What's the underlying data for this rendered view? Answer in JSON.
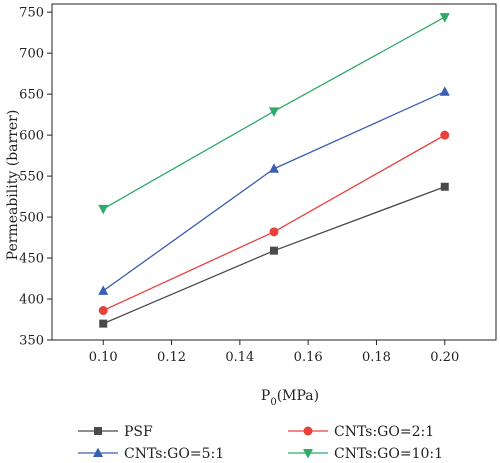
{
  "chart_data": {
    "type": "line",
    "x": [
      0.1,
      0.15,
      0.2
    ],
    "x_ticks": [
      "0.10",
      "0.12",
      "0.14",
      "0.16",
      "0.18",
      "0.20"
    ],
    "y_ticks": [
      "350",
      "400",
      "450",
      "500",
      "550",
      "600",
      "650",
      "700",
      "750"
    ],
    "xlim": [
      0.085,
      0.215
    ],
    "ylim": [
      350,
      760
    ],
    "xlabel_main": "P",
    "xlabel_sub": "0",
    "xlabel_unit": "(MPa)",
    "ylabel": "Permeability (barrer)",
    "legend_position": "bottom",
    "grid": false,
    "series": [
      {
        "name": "PSF",
        "values": [
          370,
          459,
          537
        ],
        "color": "#4a4a4a",
        "marker": "square"
      },
      {
        "name": "CNTs:GO=2:1",
        "values": [
          386,
          482,
          600
        ],
        "color": "#e8403a",
        "marker": "circle"
      },
      {
        "name": "CNTs:GO=5:1",
        "values": [
          410,
          559,
          653
        ],
        "color": "#3a5fb4",
        "marker": "triangle-up"
      },
      {
        "name": "CNTs:GO=10:1",
        "values": [
          510,
          629,
          744
        ],
        "color": "#2eaa6a",
        "marker": "triangle-down"
      }
    ]
  }
}
